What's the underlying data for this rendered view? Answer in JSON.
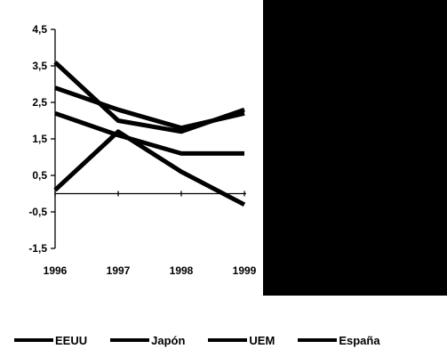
{
  "chart_data": {
    "type": "line",
    "x": [
      1996,
      1997,
      1998,
      1999
    ],
    "x_tick_labels": [
      "1996",
      "1997",
      "1998",
      "1999"
    ],
    "ylim": [
      -1.5,
      4.5
    ],
    "y_ticks": [
      4.5,
      3.5,
      2.5,
      1.5,
      0.5,
      -0.5,
      -1.5
    ],
    "y_tick_labels": [
      "4,5",
      "3,5",
      "2,5",
      "1,5",
      "0,5",
      "-0,5",
      "-1,5"
    ],
    "grid": false,
    "legend_position": "bottom",
    "line_color": "#000000",
    "series": [
      {
        "name": "EEUU",
        "values": [
          3.6,
          2.0,
          1.7,
          2.3
        ]
      },
      {
        "name": "Japón",
        "values": [
          0.1,
          1.7,
          0.6,
          -0.3
        ]
      },
      {
        "name": "UEM",
        "values": [
          2.2,
          1.6,
          1.1,
          1.1
        ]
      },
      {
        "name": "España",
        "values": [
          2.9,
          2.3,
          1.8,
          2.2
        ]
      }
    ]
  }
}
